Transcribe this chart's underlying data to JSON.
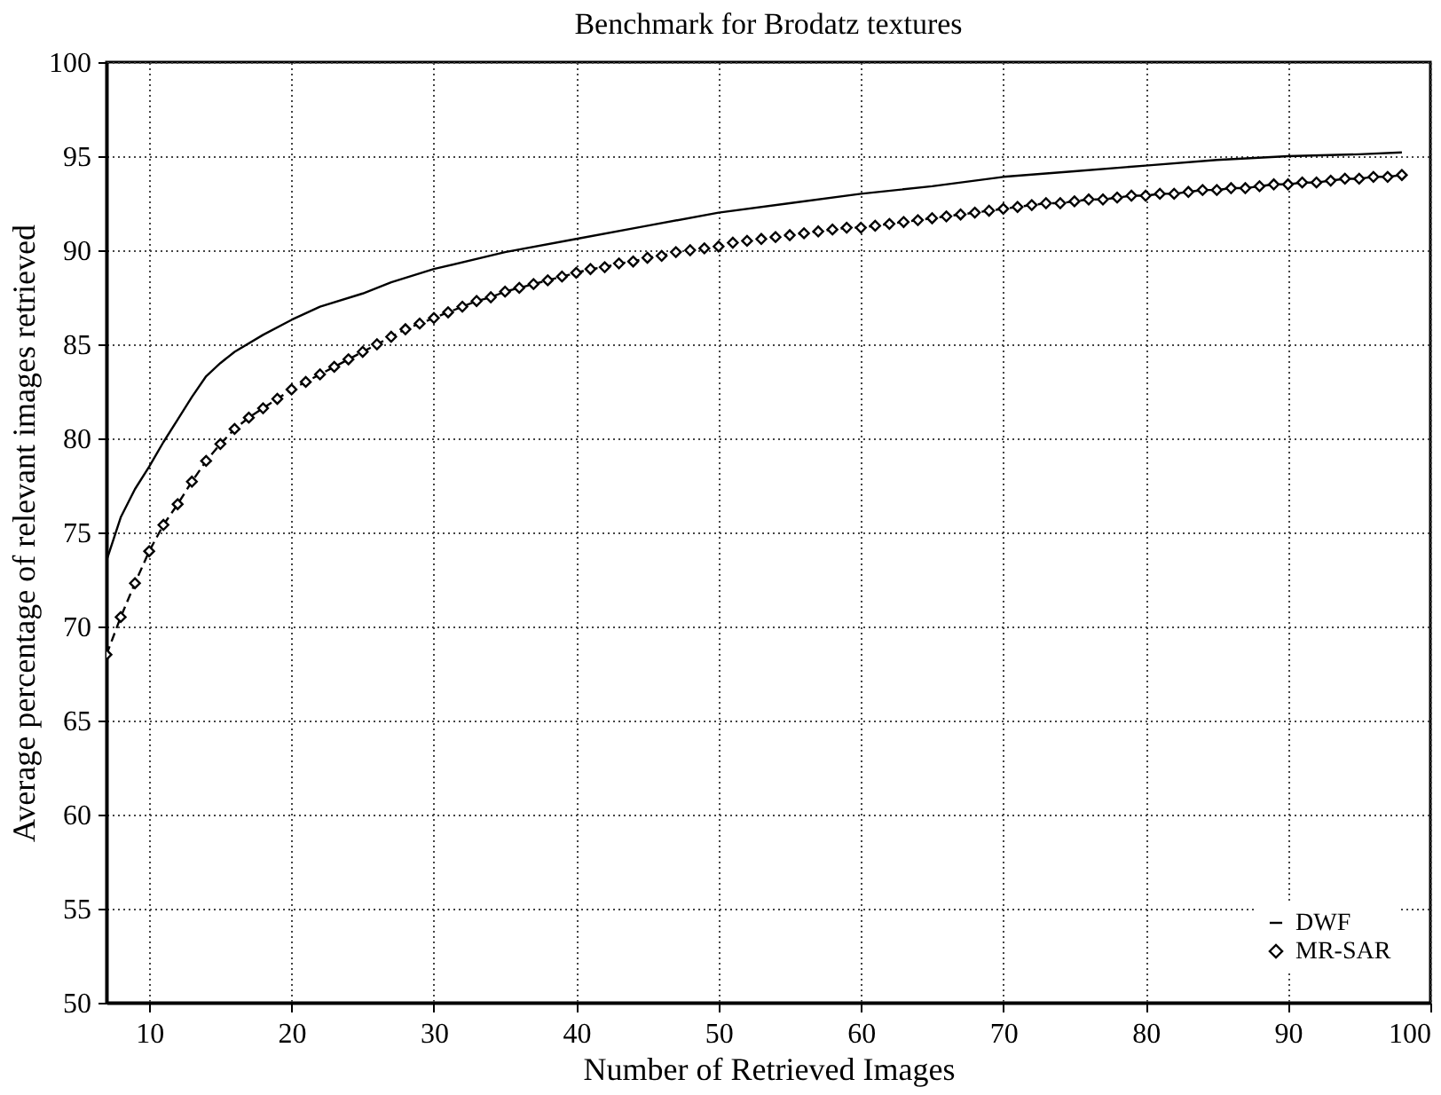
{
  "chart_data": {
    "type": "line",
    "title": "Benchmark for Brodatz textures",
    "xlabel": "Number of Retrieved Images",
    "ylabel": "Average percentage of relevant images retrieved",
    "xlim": [
      7,
      100
    ],
    "xticks": [
      10,
      20,
      30,
      40,
      50,
      60,
      70,
      80,
      90,
      100
    ],
    "ylim": [
      50,
      100
    ],
    "yticks": [
      50,
      55,
      60,
      65,
      70,
      75,
      80,
      85,
      90,
      95,
      100
    ],
    "grid": true,
    "legend": "bottom right",
    "series": [
      {
        "name": "DWF",
        "color": "#000000",
        "marker": "none",
        "line_style": "solid",
        "x": [
          7,
          8,
          9,
          10,
          11,
          12,
          13,
          14,
          15,
          16,
          18,
          20,
          22,
          25,
          27,
          30,
          35,
          40,
          45,
          50,
          55,
          60,
          65,
          70,
          75,
          80,
          85,
          90,
          95,
          98
        ],
        "values": [
          73.5,
          75.8,
          77.3,
          78.5,
          79.8,
          81,
          82.2,
          83.3,
          84,
          84.6,
          85.5,
          86.3,
          87,
          87.7,
          88.3,
          89,
          89.9,
          90.6,
          91.3,
          92,
          92.5,
          93,
          93.4,
          93.9,
          94.2,
          94.5,
          94.8,
          95,
          95.1,
          95.2
        ]
      },
      {
        "name": "MR-SAR",
        "color": "#000000",
        "marker": "diamond",
        "line_style": "dashed",
        "x": [
          7,
          8,
          9,
          10,
          11,
          12,
          13,
          14,
          15,
          16,
          17,
          18,
          19,
          20,
          21,
          22,
          23,
          24,
          25,
          26,
          27,
          28,
          29,
          30,
          31,
          32,
          33,
          34,
          35,
          36,
          37,
          38,
          39,
          40,
          41,
          42,
          43,
          44,
          45,
          46,
          47,
          48,
          49,
          50,
          51,
          52,
          53,
          54,
          55,
          56,
          57,
          58,
          59,
          60,
          61,
          62,
          63,
          64,
          65,
          66,
          67,
          68,
          69,
          70,
          71,
          72,
          73,
          74,
          75,
          76,
          77,
          78,
          79,
          80,
          81,
          82,
          83,
          84,
          85,
          86,
          87,
          88,
          89,
          90,
          91,
          92,
          93,
          94,
          95,
          96,
          97,
          98
        ],
        "values": [
          68.5,
          70.5,
          72.3,
          74,
          75.4,
          76.5,
          77.7,
          78.8,
          79.7,
          80.5,
          81.1,
          81.6,
          82.1,
          82.6,
          83,
          83.4,
          83.8,
          84.2,
          84.6,
          85,
          85.4,
          85.8,
          86.1,
          86.4,
          86.7,
          87,
          87.3,
          87.5,
          87.8,
          88,
          88.2,
          88.4,
          88.6,
          88.8,
          89,
          89.1,
          89.3,
          89.4,
          89.6,
          89.7,
          89.9,
          90,
          90.1,
          90.2,
          90.4,
          90.5,
          90.6,
          90.7,
          90.8,
          90.9,
          91,
          91.1,
          91.2,
          91.2,
          91.3,
          91.4,
          91.5,
          91.6,
          91.7,
          91.8,
          91.9,
          92,
          92.1,
          92.2,
          92.3,
          92.4,
          92.5,
          92.5,
          92.6,
          92.7,
          92.7,
          92.8,
          92.9,
          92.9,
          93,
          93,
          93.1,
          93.2,
          93.2,
          93.3,
          93.3,
          93.4,
          93.5,
          93.5,
          93.6,
          93.6,
          93.7,
          93.8,
          93.8,
          93.9,
          93.9,
          94
        ]
      }
    ]
  }
}
